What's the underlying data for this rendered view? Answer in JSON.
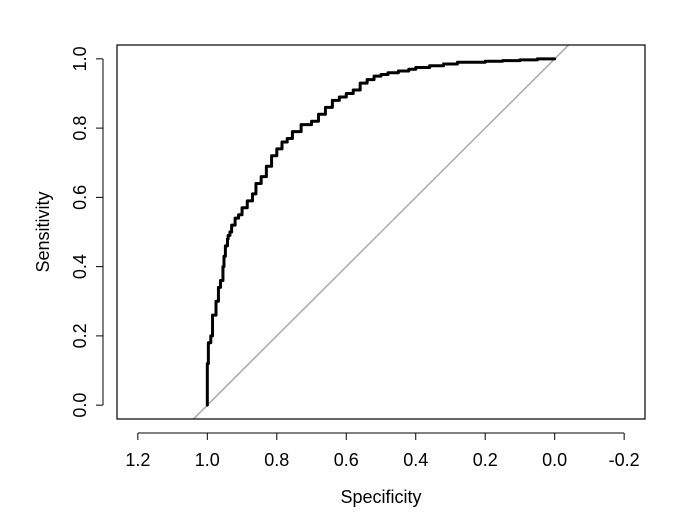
{
  "chart_data": {
    "type": "line",
    "title": "",
    "xlabel": "Specificity",
    "ylabel": "Sensitivity",
    "x_reversed": true,
    "xlim": [
      1.26,
      -0.26
    ],
    "ylim": [
      -0.04,
      1.04
    ],
    "x_ticks": [
      1.2,
      1.0,
      0.8,
      0.6,
      0.4,
      0.2,
      0.0,
      -0.2
    ],
    "x_tick_labels": [
      "1.2",
      "1.0",
      "0.8",
      "0.6",
      "0.4",
      "0.2",
      "0.0",
      "-0.2"
    ],
    "y_ticks": [
      0.0,
      0.2,
      0.4,
      0.6,
      0.8,
      1.0
    ],
    "y_tick_labels": [
      "0.0",
      "0.2",
      "0.4",
      "0.6",
      "0.8",
      "1.0"
    ],
    "grid": false,
    "legend": "none",
    "series": [
      {
        "color": "#000000",
        "style": "step",
        "specificity": [
          1.0,
          1.0,
          0.997,
          0.99,
          0.985,
          0.975,
          0.968,
          0.962,
          0.955,
          0.952,
          0.948,
          0.942,
          0.94,
          0.935,
          0.93,
          0.92,
          0.91,
          0.9,
          0.885,
          0.87,
          0.86,
          0.845,
          0.83,
          0.815,
          0.8,
          0.785,
          0.77,
          0.755,
          0.73,
          0.7,
          0.68,
          0.66,
          0.64,
          0.62,
          0.6,
          0.58,
          0.56,
          0.54,
          0.52,
          0.5,
          0.48,
          0.45,
          0.42,
          0.4,
          0.36,
          0.32,
          0.28,
          0.25,
          0.2,
          0.15,
          0.1,
          0.05,
          0.02,
          0.0
        ],
        "sensitivity": [
          0.0,
          0.06,
          0.12,
          0.18,
          0.2,
          0.26,
          0.3,
          0.34,
          0.36,
          0.4,
          0.43,
          0.46,
          0.48,
          0.49,
          0.5,
          0.52,
          0.54,
          0.55,
          0.57,
          0.59,
          0.61,
          0.64,
          0.66,
          0.69,
          0.72,
          0.74,
          0.76,
          0.77,
          0.79,
          0.81,
          0.82,
          0.84,
          0.86,
          0.88,
          0.89,
          0.9,
          0.91,
          0.93,
          0.94,
          0.95,
          0.955,
          0.96,
          0.965,
          0.97,
          0.975,
          0.98,
          0.985,
          0.99,
          0.99,
          0.993,
          0.995,
          0.997,
          1.0,
          1.0
        ]
      }
    ],
    "reference_line": {
      "color": "#a9a9a9",
      "from": [
        1.0,
        0.0
      ],
      "to": [
        0.0,
        1.0
      ]
    },
    "colors": {
      "curve": "#000000",
      "diagonal": "#a9a9a9",
      "frame": "#000000",
      "background": "#ffffff"
    }
  }
}
